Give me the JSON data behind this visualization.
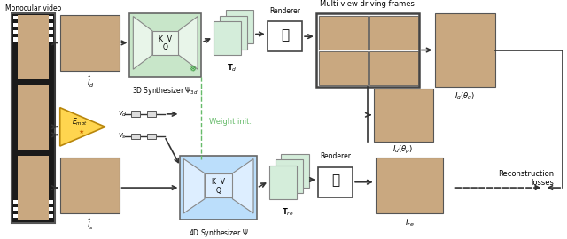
{
  "bg_color": "#ffffff",
  "top_label": "Monocular video",
  "multi_view_label": "Multi-view driving frames",
  "renderer_label": "Renderer",
  "synth_3d_label": "3D Synthesizer $\\Psi_{3d}$",
  "synth_4d_label": "4D Synthesizer $\\Psi$",
  "weight_init_label": "Weight init.",
  "recon_losses_label": "Reconstruction\nlosses",
  "green_box_color": "#c8e6c9",
  "blue_box_color": "#bbdefb",
  "gold_tri_color": "#ffd54f",
  "gold_tri_edge": "#b8860b",
  "arrow_color": "#333333",
  "dashed_green_color": "#66bb6a",
  "face_color": "#c9a880",
  "film_color": "#1a1a1a",
  "renderer_ec": "#444444",
  "synth_ec": "#666666",
  "inner_ec": "#888888",
  "mv_box_ec": "#444444",
  "snowflake_color": "#43a047",
  "resistor_fc": "#dddddd",
  "resistor_ec": "#555555"
}
